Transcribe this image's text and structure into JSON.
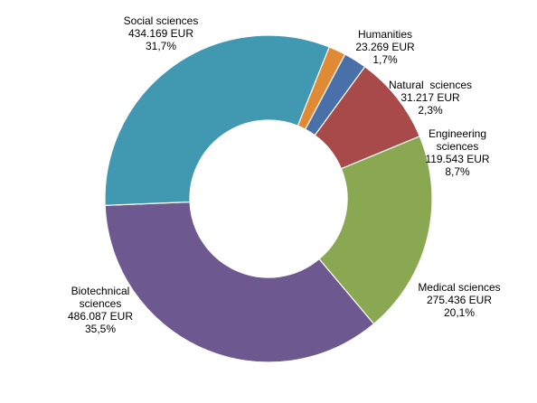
{
  "chart_data": {
    "type": "pie",
    "variant": "donut",
    "legend": "none",
    "slices": [
      {
        "name": "Humanities",
        "value": 23269,
        "value_text": "23.269 EUR",
        "percent": 1.7,
        "percent_text": "1,7%",
        "color": "#e08a35",
        "label_lines": [
          "Humanities"
        ]
      },
      {
        "name": "Natural  sciences",
        "value": 31217,
        "value_text": "31.217 EUR",
        "percent": 2.3,
        "percent_text": "2,3%",
        "color": "#4a70aa",
        "label_lines": [
          "Natural  sciences"
        ]
      },
      {
        "name": "Engineering sciences",
        "value": 119543,
        "value_text": "119.543 EUR",
        "percent": 8.7,
        "percent_text": "8,7%",
        "color": "#a84a4a",
        "label_lines": [
          "Engineering",
          "sciences"
        ]
      },
      {
        "name": "Medical sciences",
        "value": 275436,
        "value_text": "275.436 EUR",
        "percent": 20.1,
        "percent_text": "20,1%",
        "color": "#8aa852",
        "label_lines": [
          "Medical sciences"
        ]
      },
      {
        "name": "Biotechnical sciences",
        "value": 486087,
        "value_text": "486.087 EUR",
        "percent": 35.5,
        "percent_text": "35,5%",
        "color": "#6e5890",
        "label_lines": [
          "Biotechnical",
          "sciences"
        ]
      },
      {
        "name": "Social sciences",
        "value": 434169,
        "value_text": "434.169 EUR",
        "percent": 31.7,
        "percent_text": "31,7%",
        "color": "#4199b1",
        "label_lines": [
          "Social sciences"
        ]
      }
    ]
  }
}
